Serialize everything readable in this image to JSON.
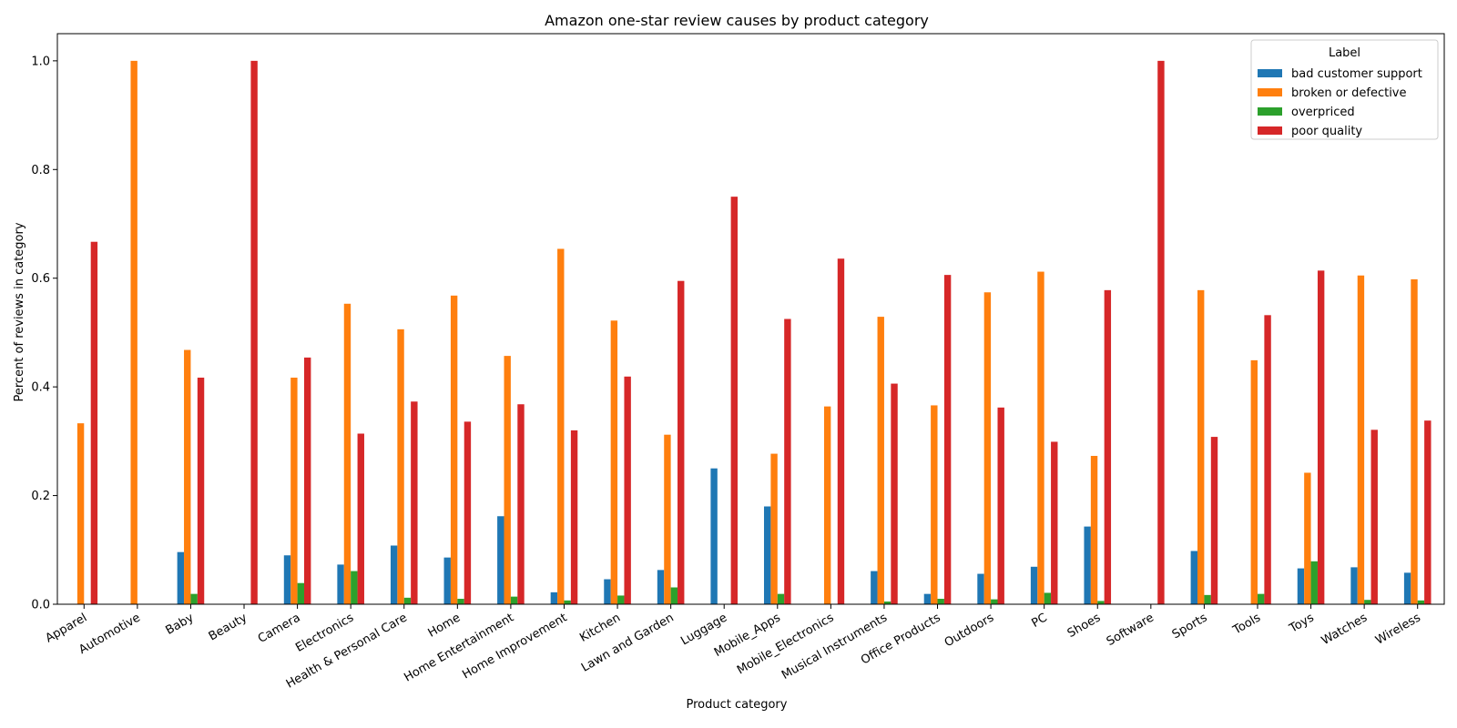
{
  "chart_data": {
    "type": "bar",
    "title": "Amazon one-star review causes by product category",
    "xlabel": "Product category",
    "ylabel": "Percent of reviews in category",
    "ylim": [
      0,
      1.05
    ],
    "yticks": [
      "0.0",
      "0.2",
      "0.4",
      "0.6",
      "0.8",
      "1.0"
    ],
    "legend_title": "Label",
    "legend_position": "top-right",
    "grid": false,
    "categories": [
      "Apparel",
      "Automotive",
      "Baby",
      "Beauty",
      "Camera",
      "Electronics",
      "Health & Personal Care",
      "Home",
      "Home Entertainment",
      "Home Improvement",
      "Kitchen",
      "Lawn and Garden",
      "Luggage",
      "Mobile_Apps",
      "Mobile_Electronics",
      "Musical Instruments",
      "Office Products",
      "Outdoors",
      "PC",
      "Shoes",
      "Software",
      "Sports",
      "Tools",
      "Toys",
      "Watches",
      "Wireless"
    ],
    "series": [
      {
        "name": "bad customer support",
        "color": "#1f77b4",
        "values": [
          0,
          0,
          0.096,
          0,
          0.09,
          0.073,
          0.108,
          0.086,
          0.162,
          0.022,
          0.046,
          0.063,
          0.25,
          0.18,
          0,
          0.061,
          0.019,
          0.056,
          0.069,
          0.143,
          0,
          0.098,
          0,
          0.066,
          0.068,
          0.058
        ]
      },
      {
        "name": "broken or defective",
        "color": "#ff7f0e",
        "values": [
          0.333,
          1.0,
          0.468,
          0,
          0.417,
          0.553,
          0.506,
          0.568,
          0.457,
          0.654,
          0.522,
          0.312,
          0,
          0.277,
          0.364,
          0.529,
          0.366,
          0.574,
          0.612,
          0.273,
          0,
          0.578,
          0.449,
          0.242,
          0.605,
          0.598
        ]
      },
      {
        "name": "overpriced",
        "color": "#2ca02c",
        "values": [
          0,
          0,
          0.019,
          0,
          0.039,
          0.061,
          0.012,
          0.01,
          0.014,
          0.007,
          0.016,
          0.031,
          0,
          0.019,
          0,
          0.005,
          0.01,
          0.009,
          0.021,
          0.006,
          0,
          0.017,
          0.019,
          0.079,
          0.008,
          0.007
        ]
      },
      {
        "name": "poor quality",
        "color": "#d62728",
        "values": [
          0.667,
          0,
          0.417,
          1.0,
          0.454,
          0.314,
          0.373,
          0.336,
          0.368,
          0.32,
          0.419,
          0.595,
          0.75,
          0.525,
          0.636,
          0.406,
          0.606,
          0.362,
          0.299,
          0.578,
          1.0,
          0.308,
          0.532,
          0.614,
          0.321,
          0.338
        ]
      }
    ]
  }
}
